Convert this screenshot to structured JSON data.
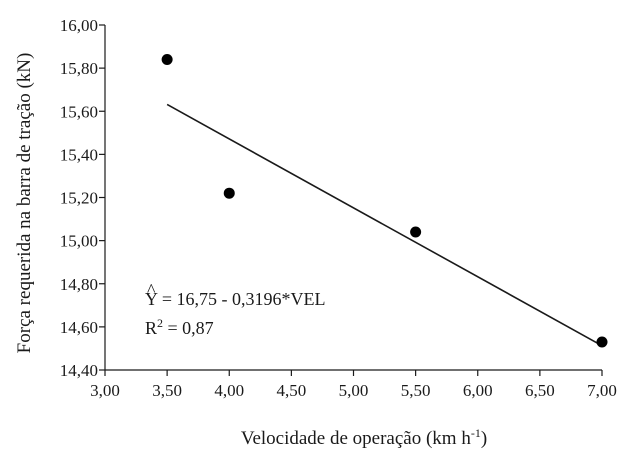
{
  "chart_data": {
    "type": "scatter",
    "xlabel": "Velocidade de operação (km h",
    "xlabel_sup": "-1",
    "xlabel_end": ")",
    "ylabel": "Força requerida na barra de tração (kN)",
    "xlim": [
      3.0,
      7.0
    ],
    "ylim": [
      14.4,
      16.0
    ],
    "x_ticks": [
      3.0,
      3.5,
      4.0,
      4.5,
      5.0,
      5.5,
      6.0,
      6.5,
      7.0
    ],
    "x_tick_labels": [
      "3,00",
      "3,50",
      "4,00",
      "4,50",
      "5,00",
      "5,50",
      "6,00",
      "6,50",
      "7,00"
    ],
    "y_ticks": [
      14.4,
      14.6,
      14.8,
      15.0,
      15.2,
      15.4,
      15.6,
      15.8,
      16.0
    ],
    "y_tick_labels": [
      "14,40",
      "14,60",
      "14,80",
      "15,00",
      "15,20",
      "15,40",
      "15,60",
      "15,80",
      "16,00"
    ],
    "grid": false,
    "points": [
      {
        "x": 3.5,
        "y": 15.84
      },
      {
        "x": 4.0,
        "y": 15.22
      },
      {
        "x": 5.5,
        "y": 15.04
      },
      {
        "x": 7.0,
        "y": 14.53
      }
    ],
    "trendline": {
      "intercept": 16.75,
      "slope": -0.3196,
      "x_start": 3.5,
      "x_end": 7.0
    },
    "equation": {
      "hat": "^",
      "line1": "Y = 16,75 - 0,3196*VEL",
      "r2_prefix": "R",
      "r2_sup": "2",
      "r2_suffix": " = 0,87"
    }
  }
}
